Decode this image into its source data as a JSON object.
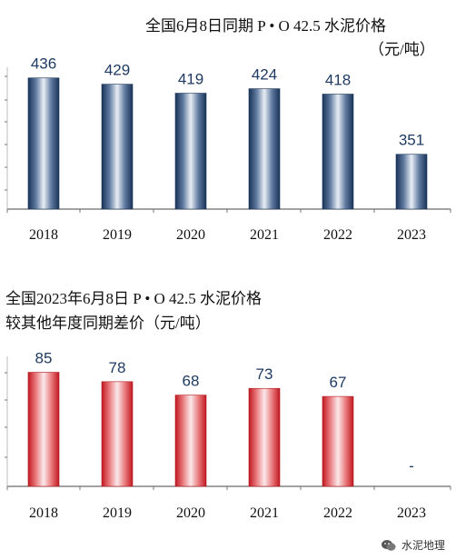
{
  "chart_data": [
    {
      "type": "bar",
      "title": "全国6月8日同期 P • O 42.5 水泥价格",
      "subtitle": "（元/吨）",
      "categories": [
        "2018",
        "2019",
        "2020",
        "2021",
        "2022",
        "2023"
      ],
      "values": [
        436,
        429,
        419,
        424,
        418,
        351
      ],
      "value_labels": [
        "436",
        "429",
        "419",
        "424",
        "418",
        "351"
      ],
      "ylim": [
        290,
        460
      ],
      "color": "#1f3a63",
      "label_color": "#1f3a63"
    },
    {
      "type": "bar",
      "title": "全国2023年6月8日 P • O 42.5 水泥价格",
      "subtitle": "较其他年度同期差价（元/吨）",
      "categories": [
        "2018",
        "2019",
        "2020",
        "2021",
        "2022",
        "2023"
      ],
      "values": [
        85,
        78,
        68,
        73,
        67,
        0
      ],
      "value_labels": [
        "85",
        "78",
        "68",
        "73",
        "67",
        "-"
      ],
      "ylim": [
        0,
        105
      ],
      "color": "#c81e24",
      "label_color": "#1f3a63"
    }
  ],
  "watermark": {
    "icon": "wechat-icon",
    "text": "水泥地理"
  }
}
